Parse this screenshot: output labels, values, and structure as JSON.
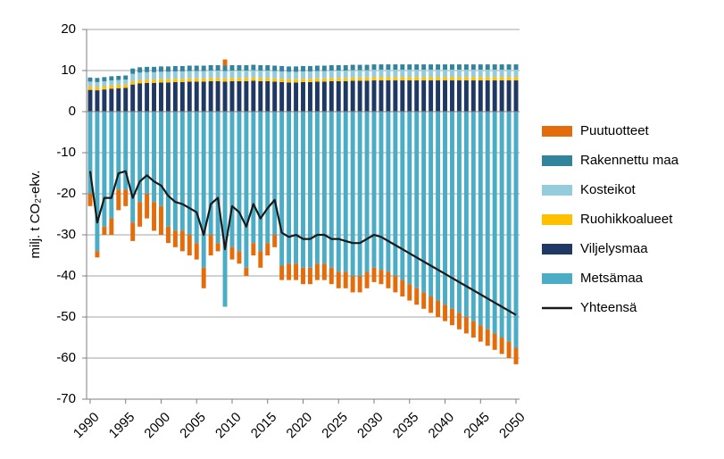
{
  "chart_data": {
    "type": "stacked_bar_line",
    "y_label": "milj. t CO₂-ekv.",
    "x": [
      1990,
      1991,
      1992,
      1993,
      1994,
      1995,
      1996,
      1997,
      1998,
      1999,
      2000,
      2001,
      2002,
      2003,
      2004,
      2005,
      2006,
      2007,
      2008,
      2009,
      2010,
      2011,
      2012,
      2013,
      2014,
      2015,
      2016,
      2017,
      2018,
      2019,
      2020,
      2021,
      2022,
      2023,
      2024,
      2025,
      2026,
      2027,
      2028,
      2029,
      2030,
      2031,
      2032,
      2033,
      2034,
      2035,
      2036,
      2037,
      2038,
      2039,
      2040,
      2041,
      2042,
      2043,
      2044,
      2045,
      2046,
      2047,
      2048,
      2049,
      2050
    ],
    "xlim": [
      1989.5,
      2050.5
    ],
    "xticks": [
      1990,
      1995,
      2000,
      2005,
      2010,
      2015,
      2020,
      2025,
      2030,
      2035,
      2040,
      2045,
      2050
    ],
    "ylim": [
      -70,
      20
    ],
    "yticks": [
      -70,
      -60,
      -50,
      -40,
      -30,
      -20,
      -10,
      0,
      10,
      20
    ],
    "grid": true,
    "legend": "right",
    "series": [
      {
        "name": "Puutuotteet",
        "color": "#e46c0a",
        "kind": "bar",
        "values": [
          -3,
          -1.5,
          -2,
          -4,
          -5,
          -4,
          -4.5,
          -6,
          -6,
          -7,
          -7,
          -4,
          -4,
          -5,
          -5,
          -4,
          -5,
          -5,
          -2,
          1.5,
          -3,
          -3,
          -2,
          -3,
          -4,
          -3,
          -3,
          -3.5,
          -4,
          -4,
          -4,
          -4,
          -4,
          -4,
          -4,
          -4,
          -4,
          -4,
          -4,
          -4,
          -3.5,
          -3.5,
          -4,
          -4,
          -4,
          -4,
          -4,
          -4,
          -4,
          -4,
          -4,
          -4,
          -4,
          -4,
          -4,
          -4,
          -4,
          -4,
          -4,
          -4,
          -4
        ]
      },
      {
        "name": "Rakennettu maa",
        "color": "#31849b",
        "kind": "bar",
        "values": [
          1,
          1,
          1,
          1,
          1,
          1,
          1.3,
          1.3,
          1.3,
          1.3,
          1.3,
          1.3,
          1.3,
          1.3,
          1.3,
          1.3,
          1.3,
          1.3,
          1.3,
          1.3,
          1.3,
          1.3,
          1.3,
          1.3,
          1.3,
          1.3,
          1.3,
          1.3,
          1.3,
          1.3,
          1.3,
          1.3,
          1.3,
          1.3,
          1.3,
          1.3,
          1.3,
          1.3,
          1.3,
          1.3,
          1.3,
          1.3,
          1.3,
          1.3,
          1.3,
          1.3,
          1.3,
          1.3,
          1.3,
          1.3,
          1.3,
          1.3,
          1.3,
          1.3,
          1.3,
          1.3,
          1.3,
          1.3,
          1.3,
          1.3,
          1.3
        ]
      },
      {
        "name": "Kosteikot",
        "color": "#93cddd",
        "kind": "bar",
        "values": [
          1.2,
          1.2,
          1.2,
          1.2,
          1.2,
          1.2,
          1.8,
          1.8,
          1.8,
          1.8,
          1.8,
          1.8,
          1.8,
          1.8,
          1.8,
          1.8,
          1.8,
          1.8,
          1.8,
          1.8,
          1.8,
          1.8,
          1.8,
          1.8,
          1.8,
          1.8,
          1.8,
          1.8,
          1.8,
          1.8,
          1.8,
          1.8,
          1.8,
          1.8,
          1.8,
          1.8,
          1.8,
          1.8,
          1.8,
          1.8,
          1.8,
          1.8,
          1.8,
          1.8,
          1.8,
          1.8,
          1.8,
          1.8,
          1.8,
          1.8,
          1.8,
          1.8,
          1.8,
          1.8,
          1.8,
          1.8,
          1.8,
          1.8,
          1.8,
          1.8,
          1.8
        ]
      },
      {
        "name": "Ruohikkoalueet",
        "color": "#ffc000",
        "kind": "bar",
        "values": [
          0.8,
          0.8,
          0.8,
          0.8,
          0.8,
          0.8,
          0.8,
          0.8,
          0.8,
          0.8,
          0.8,
          0.8,
          0.8,
          0.8,
          0.8,
          0.8,
          0.8,
          0.8,
          0.8,
          0.8,
          0.8,
          0.8,
          0.8,
          0.8,
          0.8,
          0.8,
          0.8,
          0.8,
          0.8,
          0.8,
          0.8,
          0.8,
          0.8,
          0.8,
          0.8,
          0.8,
          0.8,
          0.8,
          0.8,
          0.8,
          0.8,
          0.8,
          0.8,
          0.8,
          0.8,
          0.8,
          0.8,
          0.8,
          0.8,
          0.8,
          0.8,
          0.8,
          0.8,
          0.8,
          0.8,
          0.8,
          0.8,
          0.8,
          0.8,
          0.8,
          0.8
        ]
      },
      {
        "name": "Viljelysmaa",
        "color": "#1f3864",
        "kind": "bar",
        "values": [
          5.3,
          5.2,
          5.4,
          5.6,
          5.7,
          5.8,
          6.6,
          6.9,
          7.0,
          7.0,
          7.1,
          7.1,
          7.2,
          7.2,
          7.3,
          7.3,
          7.3,
          7.4,
          7.4,
          7.3,
          7.4,
          7.4,
          7.4,
          7.5,
          7.4,
          7.4,
          7.3,
          7.2,
          7.1,
          7.1,
          7.2,
          7.2,
          7.3,
          7.3,
          7.4,
          7.4,
          7.4,
          7.5,
          7.5,
          7.5,
          7.6,
          7.6,
          7.6,
          7.6,
          7.6,
          7.6,
          7.6,
          7.6,
          7.6,
          7.6,
          7.6,
          7.6,
          7.6,
          7.6,
          7.6,
          7.6,
          7.6,
          7.6,
          7.6,
          7.6,
          7.6
        ]
      },
      {
        "name": "Metsämaa",
        "color": "#4bacc6",
        "kind": "bar",
        "values": [
          -20,
          -34,
          -28,
          -26,
          -19,
          -19,
          -27,
          -22,
          -20,
          -22,
          -23,
          -28,
          -29,
          -29,
          -30,
          -32,
          -38,
          -30,
          -32,
          -47.5,
          -33,
          -34,
          -38,
          -32,
          -34,
          -32,
          -30,
          -37.5,
          -37,
          -37,
          -38,
          -38,
          -37,
          -37,
          -38,
          -39,
          -39,
          -40,
          -40,
          -39,
          -38,
          -38.5,
          -39,
          -40,
          -41,
          -42,
          -43,
          -44,
          -45,
          -46,
          -47,
          -48,
          -49,
          -50,
          -51,
          -52,
          -53,
          -54,
          -55,
          -56,
          -57.5
        ]
      },
      {
        "name": "Yhteensä",
        "color": "#1a1a1a",
        "kind": "line",
        "values": [
          -14.5,
          -27,
          -21,
          -21,
          -15,
          -14.5,
          -21,
          -17,
          -15.5,
          -17,
          -18,
          -20.5,
          -22,
          -22.5,
          -23.5,
          -24.5,
          -30,
          -22.5,
          -21,
          -33.5,
          -23,
          -24.5,
          -28,
          -22.5,
          -26,
          -23.5,
          -21.5,
          -29.5,
          -30.5,
          -30,
          -31,
          -31,
          -30,
          -30,
          -31,
          -31,
          -31.5,
          -32,
          -32,
          -31,
          -30,
          -30.5,
          -31.5,
          -32.5,
          -33.5,
          -34.5,
          -35.5,
          -36.5,
          -37.5,
          -38.5,
          -39.5,
          -40.5,
          -41.5,
          -42.5,
          -43.5,
          -44.5,
          -45.5,
          -46.5,
          -47.5,
          -48.5,
          -49.5
        ]
      }
    ]
  }
}
